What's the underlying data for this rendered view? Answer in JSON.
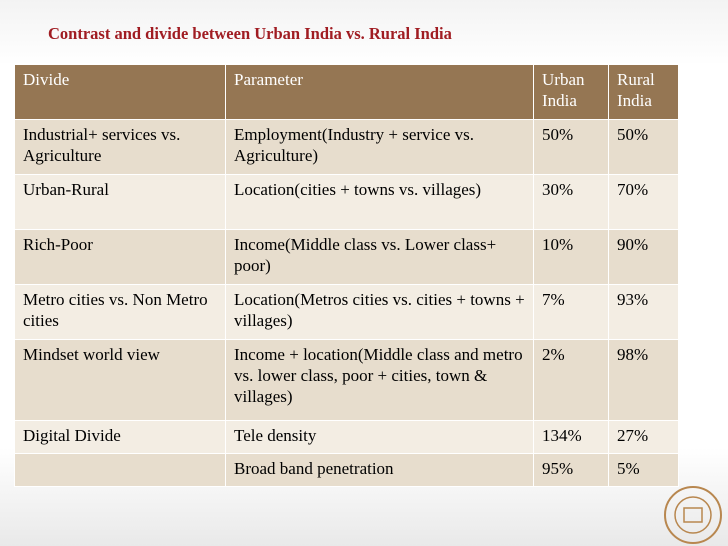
{
  "header": {
    "title": "Contrast and divide between Urban India vs. Rural India"
  },
  "table": {
    "columns": [
      "Divide",
      "Parameter",
      "Urban India",
      "Rural India"
    ],
    "rows": [
      [
        "Industrial+ services vs. Agriculture",
        "Employment(Industry + service vs. Agriculture)",
        "50%",
        "50%"
      ],
      [
        "Urban-Rural",
        "Location(cities + towns  vs. villages)",
        "30%",
        "70%"
      ],
      [
        "Rich-Poor",
        "Income(Middle class vs. Lower class+ poor)",
        "10%",
        "90%"
      ],
      [
        "Metro cities vs. Non Metro cities",
        "Location(Metros cities  vs.  cities + towns + villages)",
        "7%",
        "93%"
      ],
      [
        "Mindset world view",
        "Income + location(Middle class and metro vs. lower class, poor + cities, town & villages)",
        "2%",
        "98%"
      ],
      [
        "Digital Divide",
        "Tele density",
        "134%",
        "27%"
      ],
      [
        null,
        "Broad band penetration",
        "95%",
        "5%"
      ]
    ]
  }
}
